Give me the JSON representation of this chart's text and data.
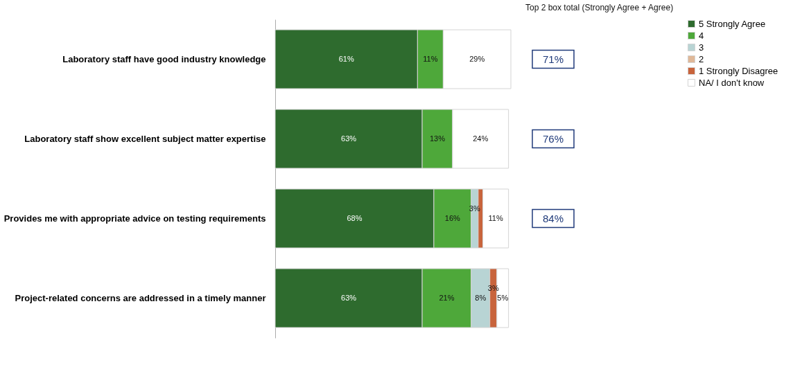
{
  "chart_data": {
    "type": "bar",
    "orientation": "horizontal",
    "stacked": true,
    "legend": "right",
    "categories": [
      "Laboratory staff have good industry knowledge",
      "Laboratory staff show excellent subject matter expertise",
      "Provides me with appropriate advice on testing requirements",
      "Project-related concerns are addressed in a timely manner"
    ],
    "series": [
      {
        "name": "5 Strongly Agree",
        "color": "#2e6b2e",
        "values": [
          61,
          63,
          68,
          63
        ],
        "value_labels": [
          "61%",
          "63%",
          "68%",
          "63%"
        ]
      },
      {
        "name": "4",
        "color": "#4ea83a",
        "values": [
          11,
          13,
          16,
          21
        ],
        "value_labels": [
          "11%",
          "13%",
          "16%",
          "21%"
        ]
      },
      {
        "name": "3",
        "color": "#b8d4d4",
        "values": [
          null,
          null,
          3,
          8
        ],
        "value_labels": [
          null,
          null,
          "3%",
          "8%"
        ]
      },
      {
        "name": "2",
        "color": "#e0b898",
        "values": [
          null,
          null,
          null,
          null
        ],
        "value_labels": [
          null,
          null,
          null,
          null
        ]
      },
      {
        "name": "1 Strongly Disagree",
        "color": "#c8643c",
        "values": [
          null,
          null,
          2,
          3
        ],
        "value_labels": [
          null,
          null,
          null,
          "3%"
        ]
      },
      {
        "name": "NA/ I don't know",
        "color": "#ffffff",
        "values": [
          29,
          24,
          11,
          5
        ],
        "value_labels": [
          "29%",
          "24%",
          "11%",
          "5%"
        ]
      }
    ],
    "annotations": [
      "Top 2 box total (Strongly Agree + Agree)",
      "71%",
      "76%",
      "84%"
    ]
  }
}
